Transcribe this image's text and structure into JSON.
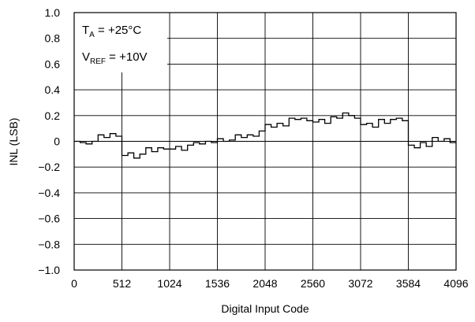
{
  "chart_data": {
    "type": "line",
    "xlabel": "Digital Input Code",
    "ylabel": "INL (LSB)",
    "xlim": [
      0,
      4096
    ],
    "ylim": [
      -1.0,
      1.0
    ],
    "grid": true,
    "x_ticks": [
      0,
      512,
      1024,
      1536,
      2048,
      2560,
      3072,
      3584,
      4096
    ],
    "y_ticks": [
      1.0,
      0.8,
      0.6,
      0.4,
      0.2,
      0,
      -0.2,
      -0.4,
      -0.6,
      -0.8,
      -1.0
    ],
    "y_tick_labels": [
      "1.0",
      "0.8",
      "0.6",
      "0.4",
      "0.2",
      "0",
      "−0.2",
      "−0.4",
      "−0.6",
      "−0.8",
      "−1.0"
    ],
    "annotations": {
      "ta": {
        "prefix": "T",
        "sub": "A",
        "suffix": " = +25°C"
      },
      "vref": {
        "prefix": "V",
        "sub": "REF",
        "suffix": " = +10V"
      }
    },
    "series": [
      {
        "x": [
          0,
          64,
          128,
          192,
          256,
          320,
          384,
          448,
          512,
          576,
          640,
          704,
          768,
          832,
          896,
          960,
          1024,
          1088,
          1152,
          1216,
          1280,
          1344,
          1408,
          1472,
          1536,
          1600,
          1664,
          1728,
          1792,
          1856,
          1920,
          1984,
          2048,
          2112,
          2176,
          2240,
          2304,
          2368,
          2432,
          2496,
          2560,
          2624,
          2688,
          2752,
          2816,
          2880,
          2944,
          3008,
          3072,
          3136,
          3200,
          3264,
          3328,
          3392,
          3456,
          3520,
          3584,
          3648,
          3712,
          3776,
          3840,
          3904,
          3968,
          4032,
          4096
        ],
        "y": [
          0.0,
          -0.01,
          -0.02,
          0.0,
          0.05,
          0.03,
          0.06,
          0.04,
          -0.11,
          -0.09,
          -0.13,
          -0.1,
          -0.05,
          -0.08,
          -0.05,
          -0.06,
          -0.06,
          -0.04,
          -0.07,
          -0.03,
          -0.01,
          -0.02,
          0.0,
          -0.01,
          0.02,
          0.0,
          0.01,
          0.05,
          0.03,
          0.05,
          0.04,
          0.08,
          0.13,
          0.11,
          0.14,
          0.12,
          0.18,
          0.17,
          0.18,
          0.16,
          0.15,
          0.17,
          0.14,
          0.19,
          0.18,
          0.22,
          0.2,
          0.18,
          0.13,
          0.14,
          0.11,
          0.17,
          0.14,
          0.17,
          0.18,
          0.16,
          -0.03,
          -0.05,
          -0.01,
          -0.04,
          0.03,
          0.0,
          0.02,
          -0.01,
          -0.01
        ]
      }
    ]
  }
}
